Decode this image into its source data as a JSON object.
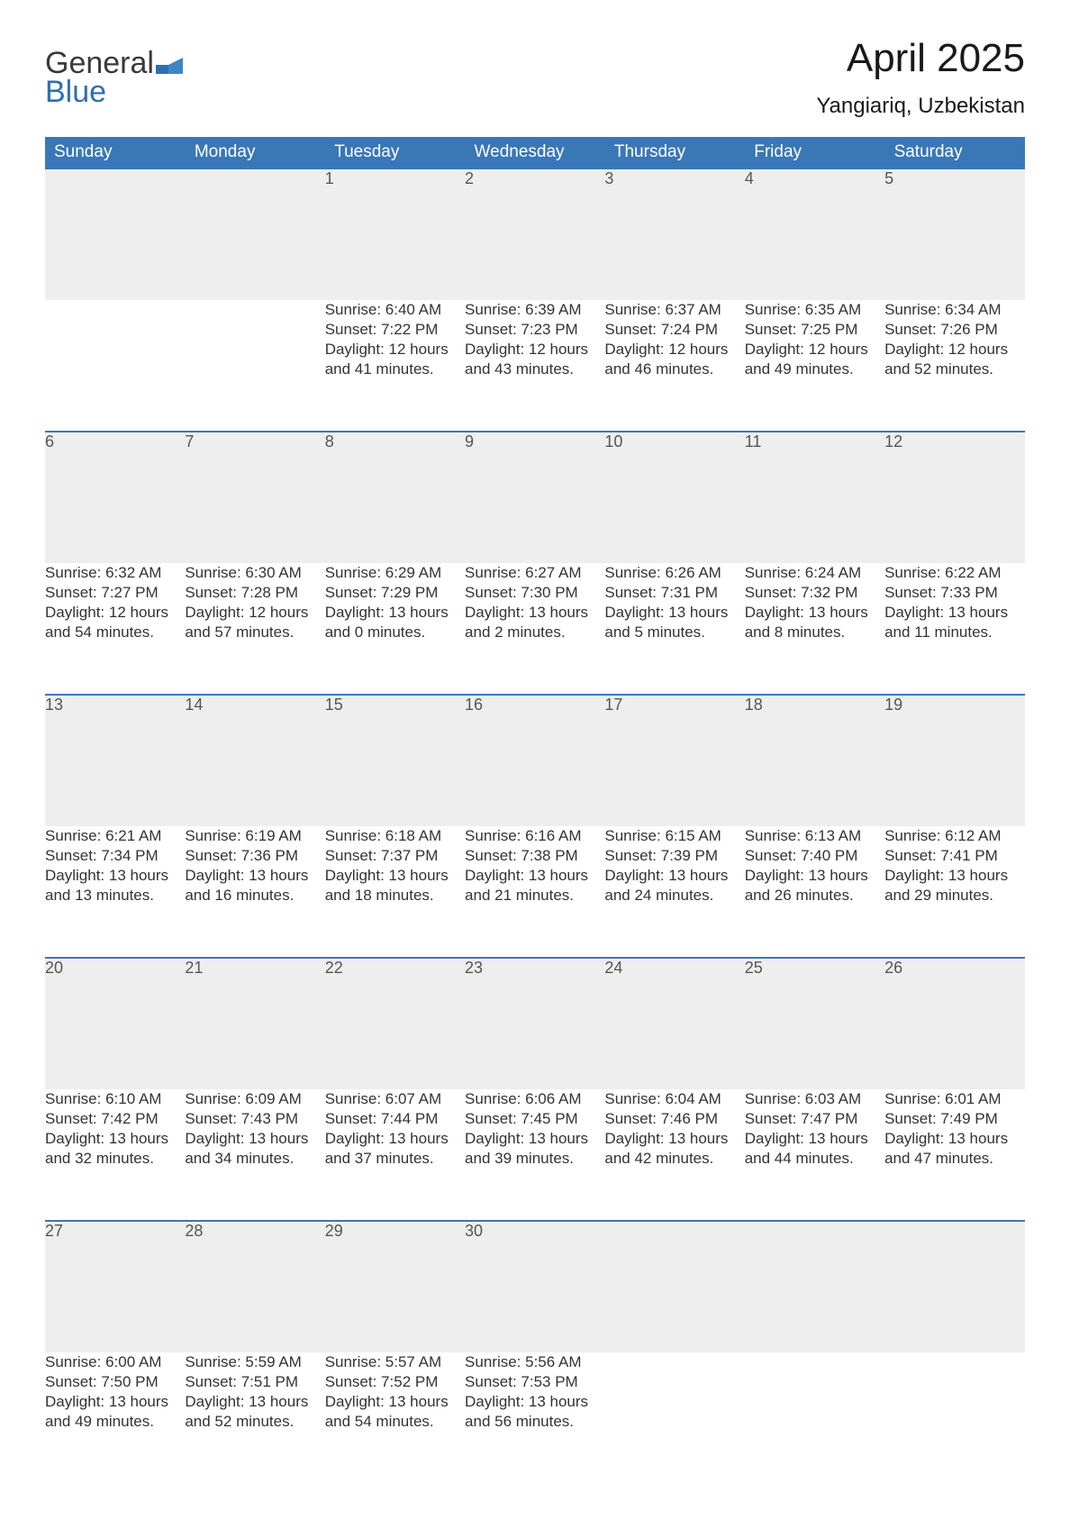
{
  "brand": {
    "word1": "General",
    "word2": "Blue",
    "accent": "#2f6fb0",
    "text_color": "#3a3a3a"
  },
  "title": "April 2025",
  "location": "Yangiariq, Uzbekistan",
  "header_bg": "#3a77b6",
  "daynum_bg": "#eeeeee",
  "row_rule": "#3a77b6",
  "weekdays": [
    "Sunday",
    "Monday",
    "Tuesday",
    "Wednesday",
    "Thursday",
    "Friday",
    "Saturday"
  ],
  "weeks": [
    [
      null,
      null,
      {
        "d": "1",
        "sunrise": "6:40 AM",
        "sunset": "7:22 PM",
        "daylight": "12 hours and 41 minutes."
      },
      {
        "d": "2",
        "sunrise": "6:39 AM",
        "sunset": "7:23 PM",
        "daylight": "12 hours and 43 minutes."
      },
      {
        "d": "3",
        "sunrise": "6:37 AM",
        "sunset": "7:24 PM",
        "daylight": "12 hours and 46 minutes."
      },
      {
        "d": "4",
        "sunrise": "6:35 AM",
        "sunset": "7:25 PM",
        "daylight": "12 hours and 49 minutes."
      },
      {
        "d": "5",
        "sunrise": "6:34 AM",
        "sunset": "7:26 PM",
        "daylight": "12 hours and 52 minutes."
      }
    ],
    [
      {
        "d": "6",
        "sunrise": "6:32 AM",
        "sunset": "7:27 PM",
        "daylight": "12 hours and 54 minutes."
      },
      {
        "d": "7",
        "sunrise": "6:30 AM",
        "sunset": "7:28 PM",
        "daylight": "12 hours and 57 minutes."
      },
      {
        "d": "8",
        "sunrise": "6:29 AM",
        "sunset": "7:29 PM",
        "daylight": "13 hours and 0 minutes."
      },
      {
        "d": "9",
        "sunrise": "6:27 AM",
        "sunset": "7:30 PM",
        "daylight": "13 hours and 2 minutes."
      },
      {
        "d": "10",
        "sunrise": "6:26 AM",
        "sunset": "7:31 PM",
        "daylight": "13 hours and 5 minutes."
      },
      {
        "d": "11",
        "sunrise": "6:24 AM",
        "sunset": "7:32 PM",
        "daylight": "13 hours and 8 minutes."
      },
      {
        "d": "12",
        "sunrise": "6:22 AM",
        "sunset": "7:33 PM",
        "daylight": "13 hours and 11 minutes."
      }
    ],
    [
      {
        "d": "13",
        "sunrise": "6:21 AM",
        "sunset": "7:34 PM",
        "daylight": "13 hours and 13 minutes."
      },
      {
        "d": "14",
        "sunrise": "6:19 AM",
        "sunset": "7:36 PM",
        "daylight": "13 hours and 16 minutes."
      },
      {
        "d": "15",
        "sunrise": "6:18 AM",
        "sunset": "7:37 PM",
        "daylight": "13 hours and 18 minutes."
      },
      {
        "d": "16",
        "sunrise": "6:16 AM",
        "sunset": "7:38 PM",
        "daylight": "13 hours and 21 minutes."
      },
      {
        "d": "17",
        "sunrise": "6:15 AM",
        "sunset": "7:39 PM",
        "daylight": "13 hours and 24 minutes."
      },
      {
        "d": "18",
        "sunrise": "6:13 AM",
        "sunset": "7:40 PM",
        "daylight": "13 hours and 26 minutes."
      },
      {
        "d": "19",
        "sunrise": "6:12 AM",
        "sunset": "7:41 PM",
        "daylight": "13 hours and 29 minutes."
      }
    ],
    [
      {
        "d": "20",
        "sunrise": "6:10 AM",
        "sunset": "7:42 PM",
        "daylight": "13 hours and 32 minutes."
      },
      {
        "d": "21",
        "sunrise": "6:09 AM",
        "sunset": "7:43 PM",
        "daylight": "13 hours and 34 minutes."
      },
      {
        "d": "22",
        "sunrise": "6:07 AM",
        "sunset": "7:44 PM",
        "daylight": "13 hours and 37 minutes."
      },
      {
        "d": "23",
        "sunrise": "6:06 AM",
        "sunset": "7:45 PM",
        "daylight": "13 hours and 39 minutes."
      },
      {
        "d": "24",
        "sunrise": "6:04 AM",
        "sunset": "7:46 PM",
        "daylight": "13 hours and 42 minutes."
      },
      {
        "d": "25",
        "sunrise": "6:03 AM",
        "sunset": "7:47 PM",
        "daylight": "13 hours and 44 minutes."
      },
      {
        "d": "26",
        "sunrise": "6:01 AM",
        "sunset": "7:49 PM",
        "daylight": "13 hours and 47 minutes."
      }
    ],
    [
      {
        "d": "27",
        "sunrise": "6:00 AM",
        "sunset": "7:50 PM",
        "daylight": "13 hours and 49 minutes."
      },
      {
        "d": "28",
        "sunrise": "5:59 AM",
        "sunset": "7:51 PM",
        "daylight": "13 hours and 52 minutes."
      },
      {
        "d": "29",
        "sunrise": "5:57 AM",
        "sunset": "7:52 PM",
        "daylight": "13 hours and 54 minutes."
      },
      {
        "d": "30",
        "sunrise": "5:56 AM",
        "sunset": "7:53 PM",
        "daylight": "13 hours and 56 minutes."
      },
      null,
      null,
      null
    ]
  ],
  "labels": {
    "sunrise": "Sunrise: ",
    "sunset": "Sunset: ",
    "daylight": "Daylight: "
  }
}
